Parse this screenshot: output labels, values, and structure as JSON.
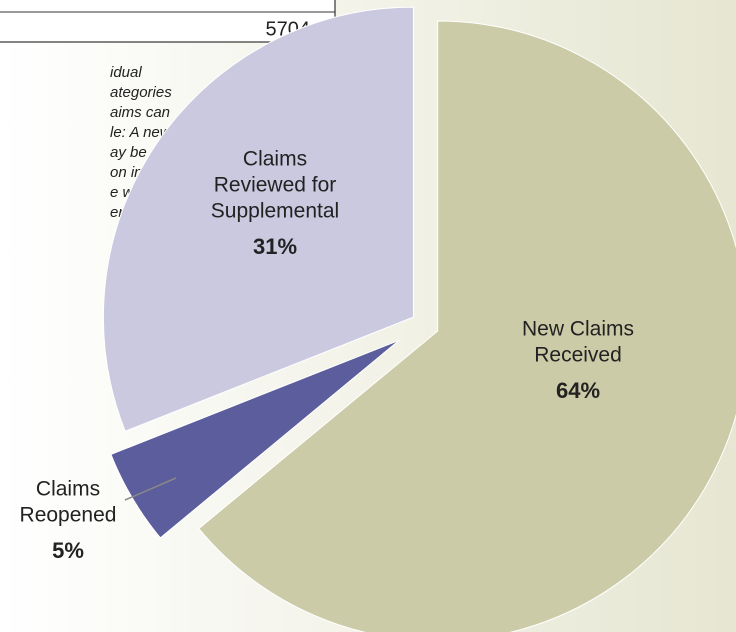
{
  "chart_data": {
    "type": "pie",
    "categories": [
      [
        "New Claims",
        "Received"
      ],
      [
        "Claims",
        "Reopened"
      ],
      [
        "Claims",
        "Reviewed for",
        "Supplemental"
      ]
    ],
    "values": [
      64,
      5,
      31
    ],
    "value_labels": [
      "64%",
      "5%",
      "31%"
    ],
    "colors": [
      "#cccba7",
      "#5b5d9c",
      "#cbc9e0"
    ],
    "total": 5704,
    "note_lines": [
      "idual",
      "ategories",
      "aims can",
      "le: A new",
      "ay be",
      "on in April;",
      "e would",
      "ened."
    ]
  }
}
